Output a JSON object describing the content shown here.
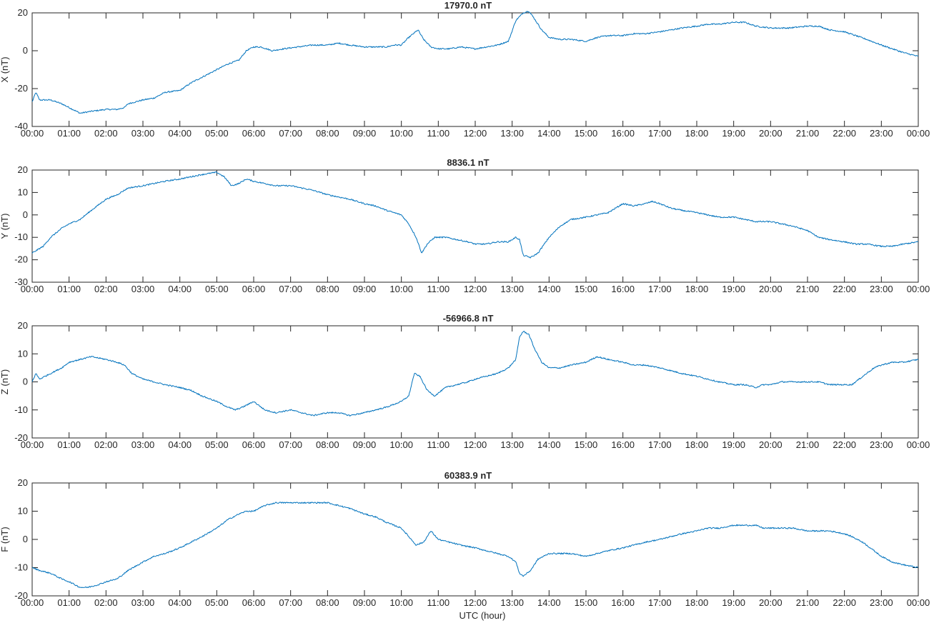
{
  "chart_data": [
    {
      "type": "line",
      "title": "17970.0 nT",
      "ylabel": "X (nT)",
      "xlabel": "",
      "ylim": [
        -40,
        20
      ],
      "yticks": [
        -40,
        -20,
        0,
        20
      ],
      "x_ticks": [
        "00:00",
        "01:00",
        "02:00",
        "03:00",
        "04:00",
        "05:00",
        "06:00",
        "07:00",
        "08:00",
        "09:00",
        "10:00",
        "11:00",
        "12:00",
        "13:00",
        "14:00",
        "15:00",
        "16:00",
        "17:00",
        "18:00",
        "19:00",
        "20:00",
        "21:00",
        "22:00",
        "23:00",
        "00:00"
      ],
      "color": "#0072BD",
      "grid": false,
      "series": [
        {
          "x": [
            0,
            0.1,
            0.2,
            0.5,
            0.8,
            1.0,
            1.3,
            1.6,
            2.0,
            2.3,
            2.5,
            2.6,
            2.8,
            3.0,
            3.3,
            3.6,
            4.0,
            4.3,
            4.6,
            5.0,
            5.3,
            5.6,
            5.8,
            6.0,
            6.2,
            6.5,
            6.8,
            7.2,
            7.6,
            8.0,
            8.3,
            8.6,
            9.0,
            9.3,
            9.6,
            9.8,
            10.0,
            10.2,
            10.45,
            10.6,
            10.8,
            11.0,
            11.3,
            11.6,
            12.0,
            12.3,
            12.6,
            12.9,
            13.1,
            13.2,
            13.3,
            13.45,
            13.6,
            13.8,
            14.0,
            14.3,
            14.6,
            15.0,
            15.3,
            15.6,
            16.0,
            16.3,
            16.6,
            17.0,
            17.3,
            17.6,
            18.0,
            18.3,
            18.6,
            19.0,
            19.3,
            19.6,
            20.0,
            20.5,
            21.0,
            21.3,
            21.6,
            22.0,
            22.3,
            22.6,
            23.0,
            23.3,
            23.6,
            24.0
          ],
          "y": [
            -27,
            -22,
            -26,
            -26,
            -28,
            -30,
            -33,
            -32,
            -31,
            -31,
            -30,
            -28,
            -27,
            -26,
            -25,
            -22,
            -21,
            -17,
            -14,
            -10,
            -7,
            -5,
            0,
            2,
            2,
            0,
            1,
            2,
            3,
            3,
            4,
            3,
            2,
            2,
            2,
            3,
            3,
            7,
            11,
            6,
            2,
            1,
            1,
            2,
            1,
            2,
            3,
            5,
            16,
            18,
            20,
            21,
            17,
            11,
            7,
            6,
            6,
            5,
            7,
            8,
            8,
            9,
            9,
            10,
            11,
            12,
            13,
            14,
            14,
            15,
            15,
            13,
            12,
            12,
            13,
            13,
            11,
            10,
            8,
            6,
            3,
            1,
            -1,
            -3
          ]
        }
      ]
    },
    {
      "type": "line",
      "title": "8836.1 nT",
      "ylabel": "Y (nT)",
      "xlabel": "",
      "ylim": [
        -30,
        20
      ],
      "yticks": [
        -30,
        -20,
        -10,
        0,
        10,
        20
      ],
      "x_ticks": [
        "00:00",
        "01:00",
        "02:00",
        "03:00",
        "04:00",
        "05:00",
        "06:00",
        "07:00",
        "08:00",
        "09:00",
        "10:00",
        "11:00",
        "12:00",
        "13:00",
        "14:00",
        "15:00",
        "16:00",
        "17:00",
        "18:00",
        "19:00",
        "20:00",
        "21:00",
        "22:00",
        "23:00",
        "00:00"
      ],
      "color": "#0072BD",
      "grid": false,
      "series": [
        {
          "x": [
            0,
            0.1,
            0.3,
            0.5,
            0.8,
            1.0,
            1.3,
            1.6,
            2.0,
            2.3,
            2.6,
            3.0,
            3.3,
            3.6,
            4.0,
            4.3,
            4.6,
            5.0,
            5.2,
            5.4,
            5.6,
            5.8,
            6.0,
            6.3,
            6.6,
            7.0,
            7.3,
            7.6,
            8.0,
            8.3,
            8.6,
            9.0,
            9.3,
            9.6,
            10.0,
            10.2,
            10.4,
            10.55,
            10.7,
            10.9,
            11.2,
            11.5,
            11.8,
            12.0,
            12.3,
            12.6,
            12.9,
            13.1,
            13.2,
            13.3,
            13.5,
            13.7,
            14.0,
            14.3,
            14.6,
            15.0,
            15.3,
            15.6,
            15.8,
            16.0,
            16.3,
            16.6,
            16.8,
            17.0,
            17.3,
            17.6,
            18.0,
            18.3,
            18.6,
            19.0,
            19.3,
            19.6,
            20.0,
            20.3,
            20.6,
            21.0,
            21.3,
            21.6,
            22.0,
            22.3,
            22.6,
            23.0,
            23.3,
            23.6,
            24.0
          ],
          "y": [
            -17,
            -16,
            -14,
            -10,
            -6,
            -4,
            -2,
            2,
            7,
            9,
            12,
            13,
            14,
            15,
            16,
            17,
            18,
            19,
            17,
            13,
            14,
            16,
            15,
            14,
            13,
            13,
            12,
            11,
            9,
            8,
            7,
            5,
            4,
            2,
            0,
            -4,
            -10,
            -17,
            -13,
            -10,
            -10,
            -11,
            -12,
            -13,
            -13,
            -12,
            -12,
            -10,
            -11,
            -18,
            -19,
            -17,
            -10,
            -5,
            -2,
            -1,
            0,
            1,
            3,
            5,
            4,
            5,
            6,
            5,
            3,
            2,
            1,
            0,
            -1,
            -1,
            -2,
            -3,
            -3,
            -4,
            -5,
            -7,
            -10,
            -11,
            -12,
            -13,
            -13,
            -14,
            -14,
            -13,
            -12
          ]
        }
      ]
    },
    {
      "type": "line",
      "title": "-56966.8 nT",
      "ylabel": "Z (nT)",
      "xlabel": "",
      "ylim": [
        -20,
        20
      ],
      "yticks": [
        -20,
        -10,
        0,
        10,
        20
      ],
      "x_ticks": [
        "00:00",
        "01:00",
        "02:00",
        "03:00",
        "04:00",
        "05:00",
        "06:00",
        "07:00",
        "08:00",
        "09:00",
        "10:00",
        "11:00",
        "12:00",
        "13:00",
        "14:00",
        "15:00",
        "16:00",
        "17:00",
        "18:00",
        "19:00",
        "20:00",
        "21:00",
        "22:00",
        "23:00",
        "00:00"
      ],
      "color": "#0072BD",
      "grid": false,
      "series": [
        {
          "x": [
            0,
            0.1,
            0.2,
            0.5,
            0.8,
            1.0,
            1.3,
            1.6,
            2.0,
            2.3,
            2.5,
            2.7,
            3.0,
            3.3,
            3.6,
            4.0,
            4.3,
            4.6,
            5.0,
            5.3,
            5.5,
            5.7,
            6.0,
            6.3,
            6.6,
            7.0,
            7.3,
            7.6,
            8.0,
            8.3,
            8.6,
            9.0,
            9.3,
            9.6,
            10.0,
            10.2,
            10.35,
            10.5,
            10.7,
            10.9,
            11.2,
            11.5,
            11.8,
            12.0,
            12.3,
            12.6,
            12.9,
            13.1,
            13.2,
            13.3,
            13.45,
            13.6,
            13.8,
            14.0,
            14.3,
            14.6,
            15.0,
            15.3,
            15.6,
            16.0,
            16.3,
            16.6,
            17.0,
            17.3,
            17.6,
            18.0,
            18.3,
            18.6,
            19.0,
            19.3,
            19.6,
            19.8,
            20.0,
            20.3,
            20.6,
            21.0,
            21.3,
            21.6,
            22.0,
            22.2,
            22.5,
            22.8,
            23.0,
            23.3,
            23.6,
            24.0
          ],
          "y": [
            0,
            3,
            1,
            3,
            5,
            7,
            8,
            9,
            8,
            7,
            6,
            3,
            1,
            0,
            -1,
            -2,
            -3,
            -5,
            -7,
            -9,
            -10,
            -9,
            -7,
            -10,
            -11,
            -10,
            -11,
            -12,
            -11,
            -11,
            -12,
            -11,
            -10,
            -9,
            -7,
            -5,
            3,
            2,
            -3,
            -5,
            -2,
            -1,
            0,
            1,
            2,
            3,
            5,
            8,
            16,
            18,
            17,
            12,
            7,
            5,
            5,
            6,
            7,
            9,
            8,
            7,
            6,
            6,
            5,
            4,
            3,
            2,
            1,
            0,
            -1,
            -1,
            -2,
            -1,
            -1,
            0,
            0,
            0,
            0,
            -1,
            -1,
            -1,
            2,
            5,
            6,
            7,
            7,
            8
          ]
        }
      ]
    },
    {
      "type": "line",
      "title": "60383.9 nT",
      "ylabel": "F (nT)",
      "xlabel": "UTC (hour)",
      "ylim": [
        -20,
        20
      ],
      "yticks": [
        -20,
        -10,
        0,
        10,
        20
      ],
      "x_ticks": [
        "00:00",
        "01:00",
        "02:00",
        "03:00",
        "04:00",
        "05:00",
        "06:00",
        "07:00",
        "08:00",
        "09:00",
        "10:00",
        "11:00",
        "12:00",
        "13:00",
        "14:00",
        "15:00",
        "16:00",
        "17:00",
        "18:00",
        "19:00",
        "20:00",
        "21:00",
        "22:00",
        "23:00",
        "00:00"
      ],
      "color": "#0072BD",
      "grid": false,
      "series": [
        {
          "x": [
            0,
            0.2,
            0.5,
            0.8,
            1.0,
            1.3,
            1.5,
            1.8,
            2.0,
            2.3,
            2.6,
            3.0,
            3.3,
            3.6,
            4.0,
            4.3,
            4.6,
            5.0,
            5.3,
            5.6,
            5.8,
            6.0,
            6.3,
            6.6,
            7.0,
            7.3,
            7.6,
            8.0,
            8.3,
            8.6,
            9.0,
            9.3,
            9.6,
            10.0,
            10.2,
            10.4,
            10.6,
            10.8,
            11.0,
            11.3,
            11.6,
            12.0,
            12.3,
            12.6,
            12.9,
            13.1,
            13.2,
            13.3,
            13.5,
            13.7,
            14.0,
            14.3,
            14.6,
            15.0,
            15.3,
            15.6,
            16.0,
            16.3,
            16.6,
            17.0,
            17.3,
            17.6,
            18.0,
            18.3,
            18.6,
            19.0,
            19.3,
            19.6,
            19.8,
            20.0,
            20.3,
            20.6,
            21.0,
            21.3,
            21.6,
            22.0,
            22.2,
            22.5,
            22.8,
            23.0,
            23.3,
            23.6,
            24.0
          ],
          "y": [
            -10,
            -11,
            -12,
            -14,
            -15,
            -17,
            -17,
            -16,
            -15,
            -14,
            -11,
            -8,
            -6,
            -5,
            -3,
            -1,
            1,
            4,
            7,
            9,
            10,
            10,
            12,
            13,
            13,
            13,
            13,
            13,
            12,
            11,
            9,
            8,
            6,
            4,
            1,
            -2,
            -1,
            3,
            0,
            -1,
            -2,
            -3,
            -4,
            -5,
            -6,
            -8,
            -12,
            -13,
            -11,
            -7,
            -5,
            -5,
            -5,
            -6,
            -5,
            -4,
            -3,
            -2,
            -1,
            0,
            1,
            2,
            3,
            4,
            4,
            5,
            5,
            5,
            4,
            4,
            4,
            4,
            3,
            3,
            3,
            2,
            1,
            -1,
            -4,
            -6,
            -8,
            -9,
            -10
          ]
        }
      ]
    }
  ]
}
